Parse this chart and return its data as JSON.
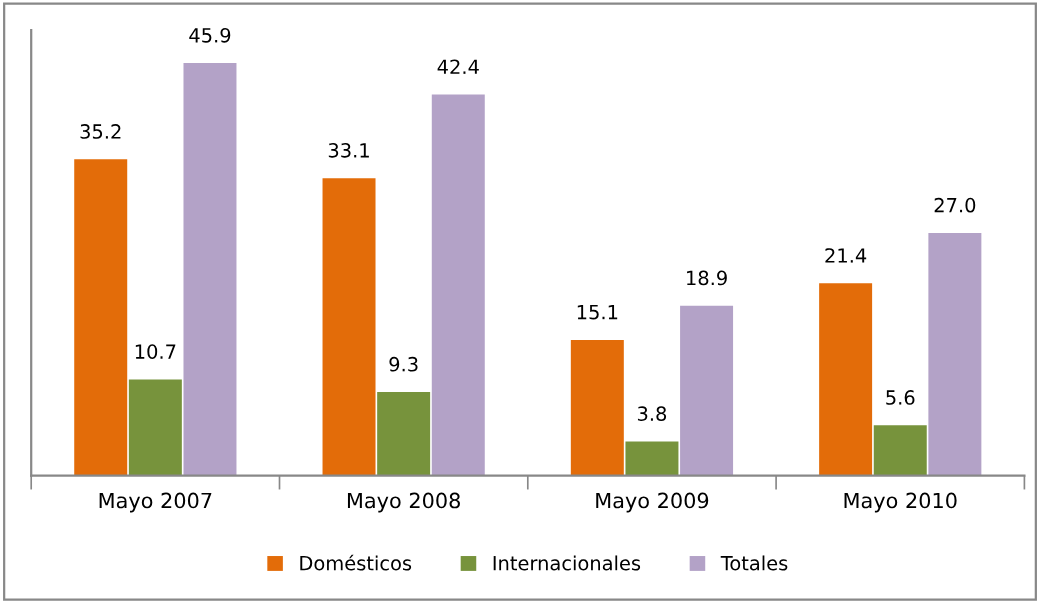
{
  "chart_data": {
    "type": "bar",
    "categories": [
      "Mayo 2007",
      "Mayo 2008",
      "Mayo 2009",
      "Mayo 2010"
    ],
    "series": [
      {
        "name": "Domésticos",
        "color": "#e36c09",
        "values": [
          35.2,
          33.1,
          15.1,
          21.4
        ],
        "value_labels": [
          "35.2",
          "33.1",
          "15.1",
          "21.4"
        ]
      },
      {
        "name": "Internacionales",
        "color": "#77933c",
        "values": [
          10.7,
          9.3,
          3.8,
          5.6
        ],
        "value_labels": [
          "10.7",
          "9.3",
          "3.8",
          "5.6"
        ]
      },
      {
        "name": "Totales",
        "color": "#b3a2c7",
        "values": [
          45.9,
          42.4,
          18.9,
          27.0
        ],
        "value_labels": [
          "45.9",
          "42.4",
          "18.9",
          "27.0"
        ]
      }
    ],
    "legend": "bottom",
    "tick_labels": "x"
  }
}
